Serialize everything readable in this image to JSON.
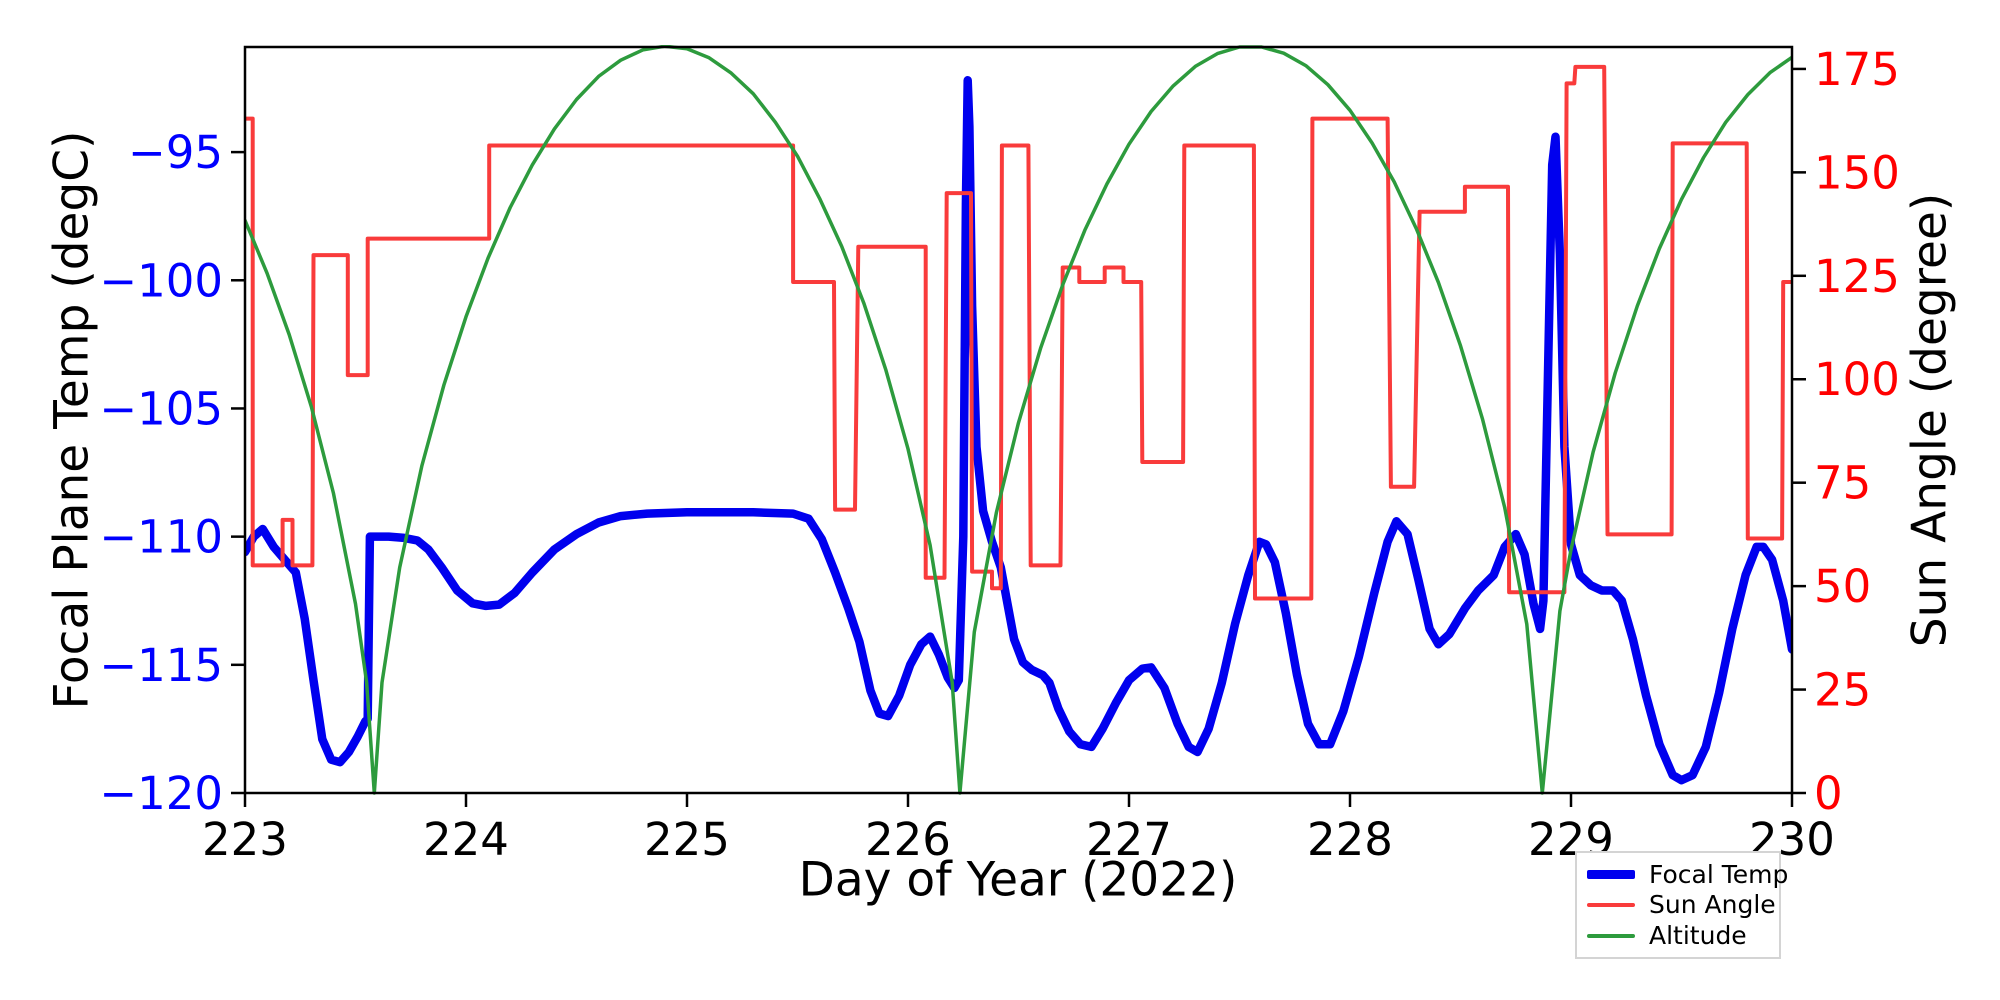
{
  "chart_data": {
    "type": "line",
    "title": "",
    "xlabel": "Day of Year (2022)",
    "x_range": [
      223,
      230
    ],
    "x_ticks": [
      223,
      224,
      225,
      226,
      227,
      228,
      229,
      230
    ],
    "x_tick_labels": [
      "223",
      "224",
      "225",
      "226",
      "227",
      "228",
      "229",
      "230"
    ],
    "grid": false,
    "y_left": {
      "label": "Focal Plane Temp (degC)",
      "color": "#0000ff",
      "range": [
        -120,
        -90.9
      ],
      "ticks": [
        -95,
        -100,
        -105,
        -110,
        -115,
        -120
      ],
      "tick_labels": [
        "−95",
        "−100",
        "−105",
        "−110",
        "−115",
        "−120"
      ]
    },
    "y_right": {
      "label": "Sun Angle (degree)",
      "color": "#ff0000",
      "range": [
        0,
        180.3
      ],
      "ticks": [
        0,
        25,
        50,
        75,
        100,
        125,
        150,
        175
      ],
      "tick_labels": [
        "0",
        "25",
        "50",
        "75",
        "100",
        "125",
        "150",
        "175"
      ]
    },
    "legend_position": "lower right outside",
    "series": [
      {
        "name": "Focal Temp",
        "axis": "left",
        "color": "#0000ee",
        "width": 8.5,
        "points": [
          [
            223.0,
            -110.6
          ],
          [
            223.04,
            -110.0
          ],
          [
            223.08,
            -109.7
          ],
          [
            223.13,
            -110.4
          ],
          [
            223.19,
            -111.0
          ],
          [
            223.23,
            -111.4
          ],
          [
            223.27,
            -113.2
          ],
          [
            223.31,
            -115.6
          ],
          [
            223.35,
            -117.9
          ],
          [
            223.39,
            -118.7
          ],
          [
            223.43,
            -118.8
          ],
          [
            223.47,
            -118.4
          ],
          [
            223.51,
            -117.8
          ],
          [
            223.545,
            -117.2
          ],
          [
            223.555,
            -117.1
          ],
          [
            223.565,
            -110.0
          ],
          [
            223.65,
            -110.0
          ],
          [
            223.72,
            -110.05
          ],
          [
            223.78,
            -110.15
          ],
          [
            223.83,
            -110.5
          ],
          [
            223.89,
            -111.2
          ],
          [
            223.96,
            -112.1
          ],
          [
            224.03,
            -112.6
          ],
          [
            224.09,
            -112.7
          ],
          [
            224.15,
            -112.65
          ],
          [
            224.22,
            -112.2
          ],
          [
            224.3,
            -111.4
          ],
          [
            224.4,
            -110.5
          ],
          [
            224.5,
            -109.9
          ],
          [
            224.6,
            -109.45
          ],
          [
            224.7,
            -109.2
          ],
          [
            224.82,
            -109.1
          ],
          [
            225.0,
            -109.05
          ],
          [
            225.3,
            -109.05
          ],
          [
            225.48,
            -109.1
          ],
          [
            225.55,
            -109.3
          ],
          [
            225.61,
            -110.1
          ],
          [
            225.67,
            -111.4
          ],
          [
            225.73,
            -112.8
          ],
          [
            225.78,
            -114.1
          ],
          [
            225.83,
            -116.0
          ],
          [
            225.87,
            -116.9
          ],
          [
            225.91,
            -117.0
          ],
          [
            225.96,
            -116.2
          ],
          [
            226.01,
            -115.0
          ],
          [
            226.06,
            -114.2
          ],
          [
            226.1,
            -113.9
          ],
          [
            226.14,
            -114.6
          ],
          [
            226.18,
            -115.5
          ],
          [
            226.21,
            -115.9
          ],
          [
            226.23,
            -115.6
          ],
          [
            226.25,
            -110.0
          ],
          [
            226.262,
            -97.0
          ],
          [
            226.27,
            -92.2
          ],
          [
            226.278,
            -94.0
          ],
          [
            226.29,
            -101.0
          ],
          [
            226.31,
            -106.5
          ],
          [
            226.34,
            -109.0
          ],
          [
            226.38,
            -110.2
          ],
          [
            226.42,
            -111.2
          ],
          [
            226.45,
            -112.6
          ],
          [
            226.48,
            -114.0
          ],
          [
            226.52,
            -114.9
          ],
          [
            226.56,
            -115.2
          ],
          [
            226.61,
            -115.4
          ],
          [
            226.64,
            -115.7
          ],
          [
            226.68,
            -116.7
          ],
          [
            226.73,
            -117.6
          ],
          [
            226.78,
            -118.1
          ],
          [
            226.83,
            -118.2
          ],
          [
            226.88,
            -117.5
          ],
          [
            226.94,
            -116.5
          ],
          [
            227.0,
            -115.6
          ],
          [
            227.06,
            -115.15
          ],
          [
            227.1,
            -115.1
          ],
          [
            227.16,
            -115.9
          ],
          [
            227.22,
            -117.3
          ],
          [
            227.27,
            -118.2
          ],
          [
            227.31,
            -118.4
          ],
          [
            227.36,
            -117.5
          ],
          [
            227.42,
            -115.7
          ],
          [
            227.48,
            -113.4
          ],
          [
            227.54,
            -111.5
          ],
          [
            227.59,
            -110.2
          ],
          [
            227.62,
            -110.3
          ],
          [
            227.66,
            -111.0
          ],
          [
            227.71,
            -113.0
          ],
          [
            227.76,
            -115.4
          ],
          [
            227.81,
            -117.3
          ],
          [
            227.86,
            -118.1
          ],
          [
            227.91,
            -118.1
          ],
          [
            227.97,
            -116.8
          ],
          [
            228.04,
            -114.7
          ],
          [
            228.11,
            -112.2
          ],
          [
            228.17,
            -110.2
          ],
          [
            228.21,
            -109.4
          ],
          [
            228.26,
            -109.9
          ],
          [
            228.31,
            -111.7
          ],
          [
            228.36,
            -113.6
          ],
          [
            228.4,
            -114.2
          ],
          [
            228.45,
            -113.8
          ],
          [
            228.52,
            -112.8
          ],
          [
            228.58,
            -112.1
          ],
          [
            228.65,
            -111.5
          ],
          [
            228.7,
            -110.4
          ],
          [
            228.75,
            -109.9
          ],
          [
            228.79,
            -110.7
          ],
          [
            228.83,
            -112.6
          ],
          [
            228.86,
            -113.6
          ],
          [
            228.875,
            -112.5
          ],
          [
            228.895,
            -104.0
          ],
          [
            228.915,
            -95.5
          ],
          [
            228.93,
            -94.4
          ],
          [
            228.95,
            -99.0
          ],
          [
            228.97,
            -106.5
          ],
          [
            229.0,
            -110.3
          ],
          [
            229.04,
            -111.5
          ],
          [
            229.09,
            -111.9
          ],
          [
            229.14,
            -112.1
          ],
          [
            229.19,
            -112.1
          ],
          [
            229.23,
            -112.5
          ],
          [
            229.28,
            -114.0
          ],
          [
            229.34,
            -116.2
          ],
          [
            229.4,
            -118.1
          ],
          [
            229.46,
            -119.3
          ],
          [
            229.5,
            -119.5
          ],
          [
            229.55,
            -119.3
          ],
          [
            229.61,
            -118.2
          ],
          [
            229.67,
            -116.1
          ],
          [
            229.73,
            -113.6
          ],
          [
            229.79,
            -111.5
          ],
          [
            229.84,
            -110.4
          ],
          [
            229.87,
            -110.4
          ],
          [
            229.91,
            -110.9
          ],
          [
            229.96,
            -112.5
          ],
          [
            230.0,
            -114.4
          ]
        ]
      },
      {
        "name": "Sun Angle",
        "axis": "right",
        "color": "#f93b3b",
        "width": 4,
        "steps": [
          [
            223.0,
            223.035,
            163
          ],
          [
            223.035,
            223.17,
            55
          ],
          [
            223.17,
            223.215,
            66
          ],
          [
            223.215,
            223.305,
            55
          ],
          [
            223.31,
            223.465,
            130
          ],
          [
            223.465,
            223.555,
            101
          ],
          [
            223.555,
            224.105,
            134
          ],
          [
            224.105,
            225.48,
            156.5
          ],
          [
            225.48,
            225.665,
            123.5
          ],
          [
            225.67,
            225.76,
            68.5
          ],
          [
            225.775,
            226.08,
            132
          ],
          [
            226.08,
            226.165,
            52
          ],
          [
            226.175,
            226.285,
            145
          ],
          [
            226.29,
            226.38,
            53.5
          ],
          [
            226.38,
            226.42,
            49.5
          ],
          [
            226.425,
            226.545,
            156.5
          ],
          [
            226.555,
            226.69,
            55
          ],
          [
            226.7,
            226.775,
            127
          ],
          [
            226.775,
            226.89,
            123.5
          ],
          [
            226.89,
            226.975,
            127
          ],
          [
            226.975,
            227.055,
            123.5
          ],
          [
            227.06,
            227.245,
            80
          ],
          [
            227.25,
            227.565,
            156.5
          ],
          [
            227.57,
            227.825,
            47
          ],
          [
            227.83,
            228.17,
            163
          ],
          [
            228.185,
            228.29,
            74
          ],
          [
            228.315,
            228.52,
            140.5
          ],
          [
            228.52,
            228.715,
            146.5
          ],
          [
            228.72,
            228.97,
            48.5
          ],
          [
            228.98,
            229.015,
            171.5
          ],
          [
            229.02,
            229.15,
            175.5
          ],
          [
            229.165,
            229.455,
            62.5
          ],
          [
            229.46,
            229.795,
            157
          ],
          [
            229.8,
            229.955,
            61.5
          ],
          [
            229.96,
            230.0,
            123.5
          ]
        ]
      },
      {
        "name": "Altitude",
        "axis": "right",
        "color": "#2d9b3d",
        "width": 3.5,
        "points": [
          [
            223.0,
            138.4
          ],
          [
            223.1,
            125.6
          ],
          [
            223.2,
            110.8
          ],
          [
            223.3,
            93.4
          ],
          [
            223.4,
            72.5
          ],
          [
            223.5,
            45.7
          ],
          [
            223.55,
            26.8
          ],
          [
            223.585,
            0
          ],
          [
            223.62,
            26.7
          ],
          [
            223.7,
            54.5
          ],
          [
            223.8,
            79.0
          ],
          [
            223.9,
            98.6
          ],
          [
            224.0,
            115.1
          ],
          [
            224.1,
            129.3
          ],
          [
            224.2,
            141.5
          ],
          [
            224.3,
            151.8
          ],
          [
            224.4,
            160.5
          ],
          [
            224.5,
            167.6
          ],
          [
            224.6,
            173.2
          ],
          [
            224.7,
            177.1
          ],
          [
            224.8,
            179.6
          ],
          [
            224.9,
            180.5
          ],
          [
            225.0,
            179.9
          ],
          [
            225.1,
            177.7
          ],
          [
            225.2,
            174.0
          ],
          [
            225.3,
            169.0
          ],
          [
            225.4,
            162.1
          ],
          [
            225.5,
            153.9
          ],
          [
            225.6,
            143.7
          ],
          [
            225.7,
            132.1
          ],
          [
            225.8,
            118.4
          ],
          [
            225.9,
            102.2
          ],
          [
            226.0,
            83.2
          ],
          [
            226.1,
            59.9
          ],
          [
            226.2,
            26.7
          ],
          [
            226.235,
            0
          ],
          [
            226.3,
            38.9
          ],
          [
            226.4,
            67.8
          ],
          [
            226.5,
            89.5
          ],
          [
            226.6,
            107.5
          ],
          [
            226.7,
            122.8
          ],
          [
            226.8,
            136.0
          ],
          [
            226.9,
            147.2
          ],
          [
            227.0,
            156.8
          ],
          [
            227.1,
            164.7
          ],
          [
            227.2,
            170.9
          ],
          [
            227.3,
            175.6
          ],
          [
            227.4,
            178.7
          ],
          [
            227.5,
            180.3
          ],
          [
            227.6,
            180.3
          ],
          [
            227.7,
            178.8
          ],
          [
            227.8,
            175.8
          ],
          [
            227.9,
            171.2
          ],
          [
            228.0,
            165.0
          ],
          [
            228.1,
            157.1
          ],
          [
            228.2,
            147.7
          ],
          [
            228.3,
            136.4
          ],
          [
            228.4,
            123.4
          ],
          [
            228.5,
            108.1
          ],
          [
            228.6,
            90.3
          ],
          [
            228.7,
            69.0
          ],
          [
            228.8,
            40.8
          ],
          [
            228.87,
            0
          ],
          [
            228.95,
            44.0
          ],
          [
            229.0,
            58.8
          ],
          [
            229.1,
            82.4
          ],
          [
            229.2,
            101.5
          ],
          [
            229.3,
            117.7
          ],
          [
            229.4,
            131.6
          ],
          [
            229.5,
            143.5
          ],
          [
            229.6,
            153.6
          ],
          [
            229.7,
            162.1
          ],
          [
            229.8,
            168.8
          ],
          [
            229.9,
            174.1
          ],
          [
            230.0,
            177.8
          ]
        ]
      }
    ]
  },
  "legend": {
    "items": [
      {
        "label": "Focal Temp"
      },
      {
        "label": "Sun Angle"
      },
      {
        "label": "Altitude"
      }
    ]
  }
}
